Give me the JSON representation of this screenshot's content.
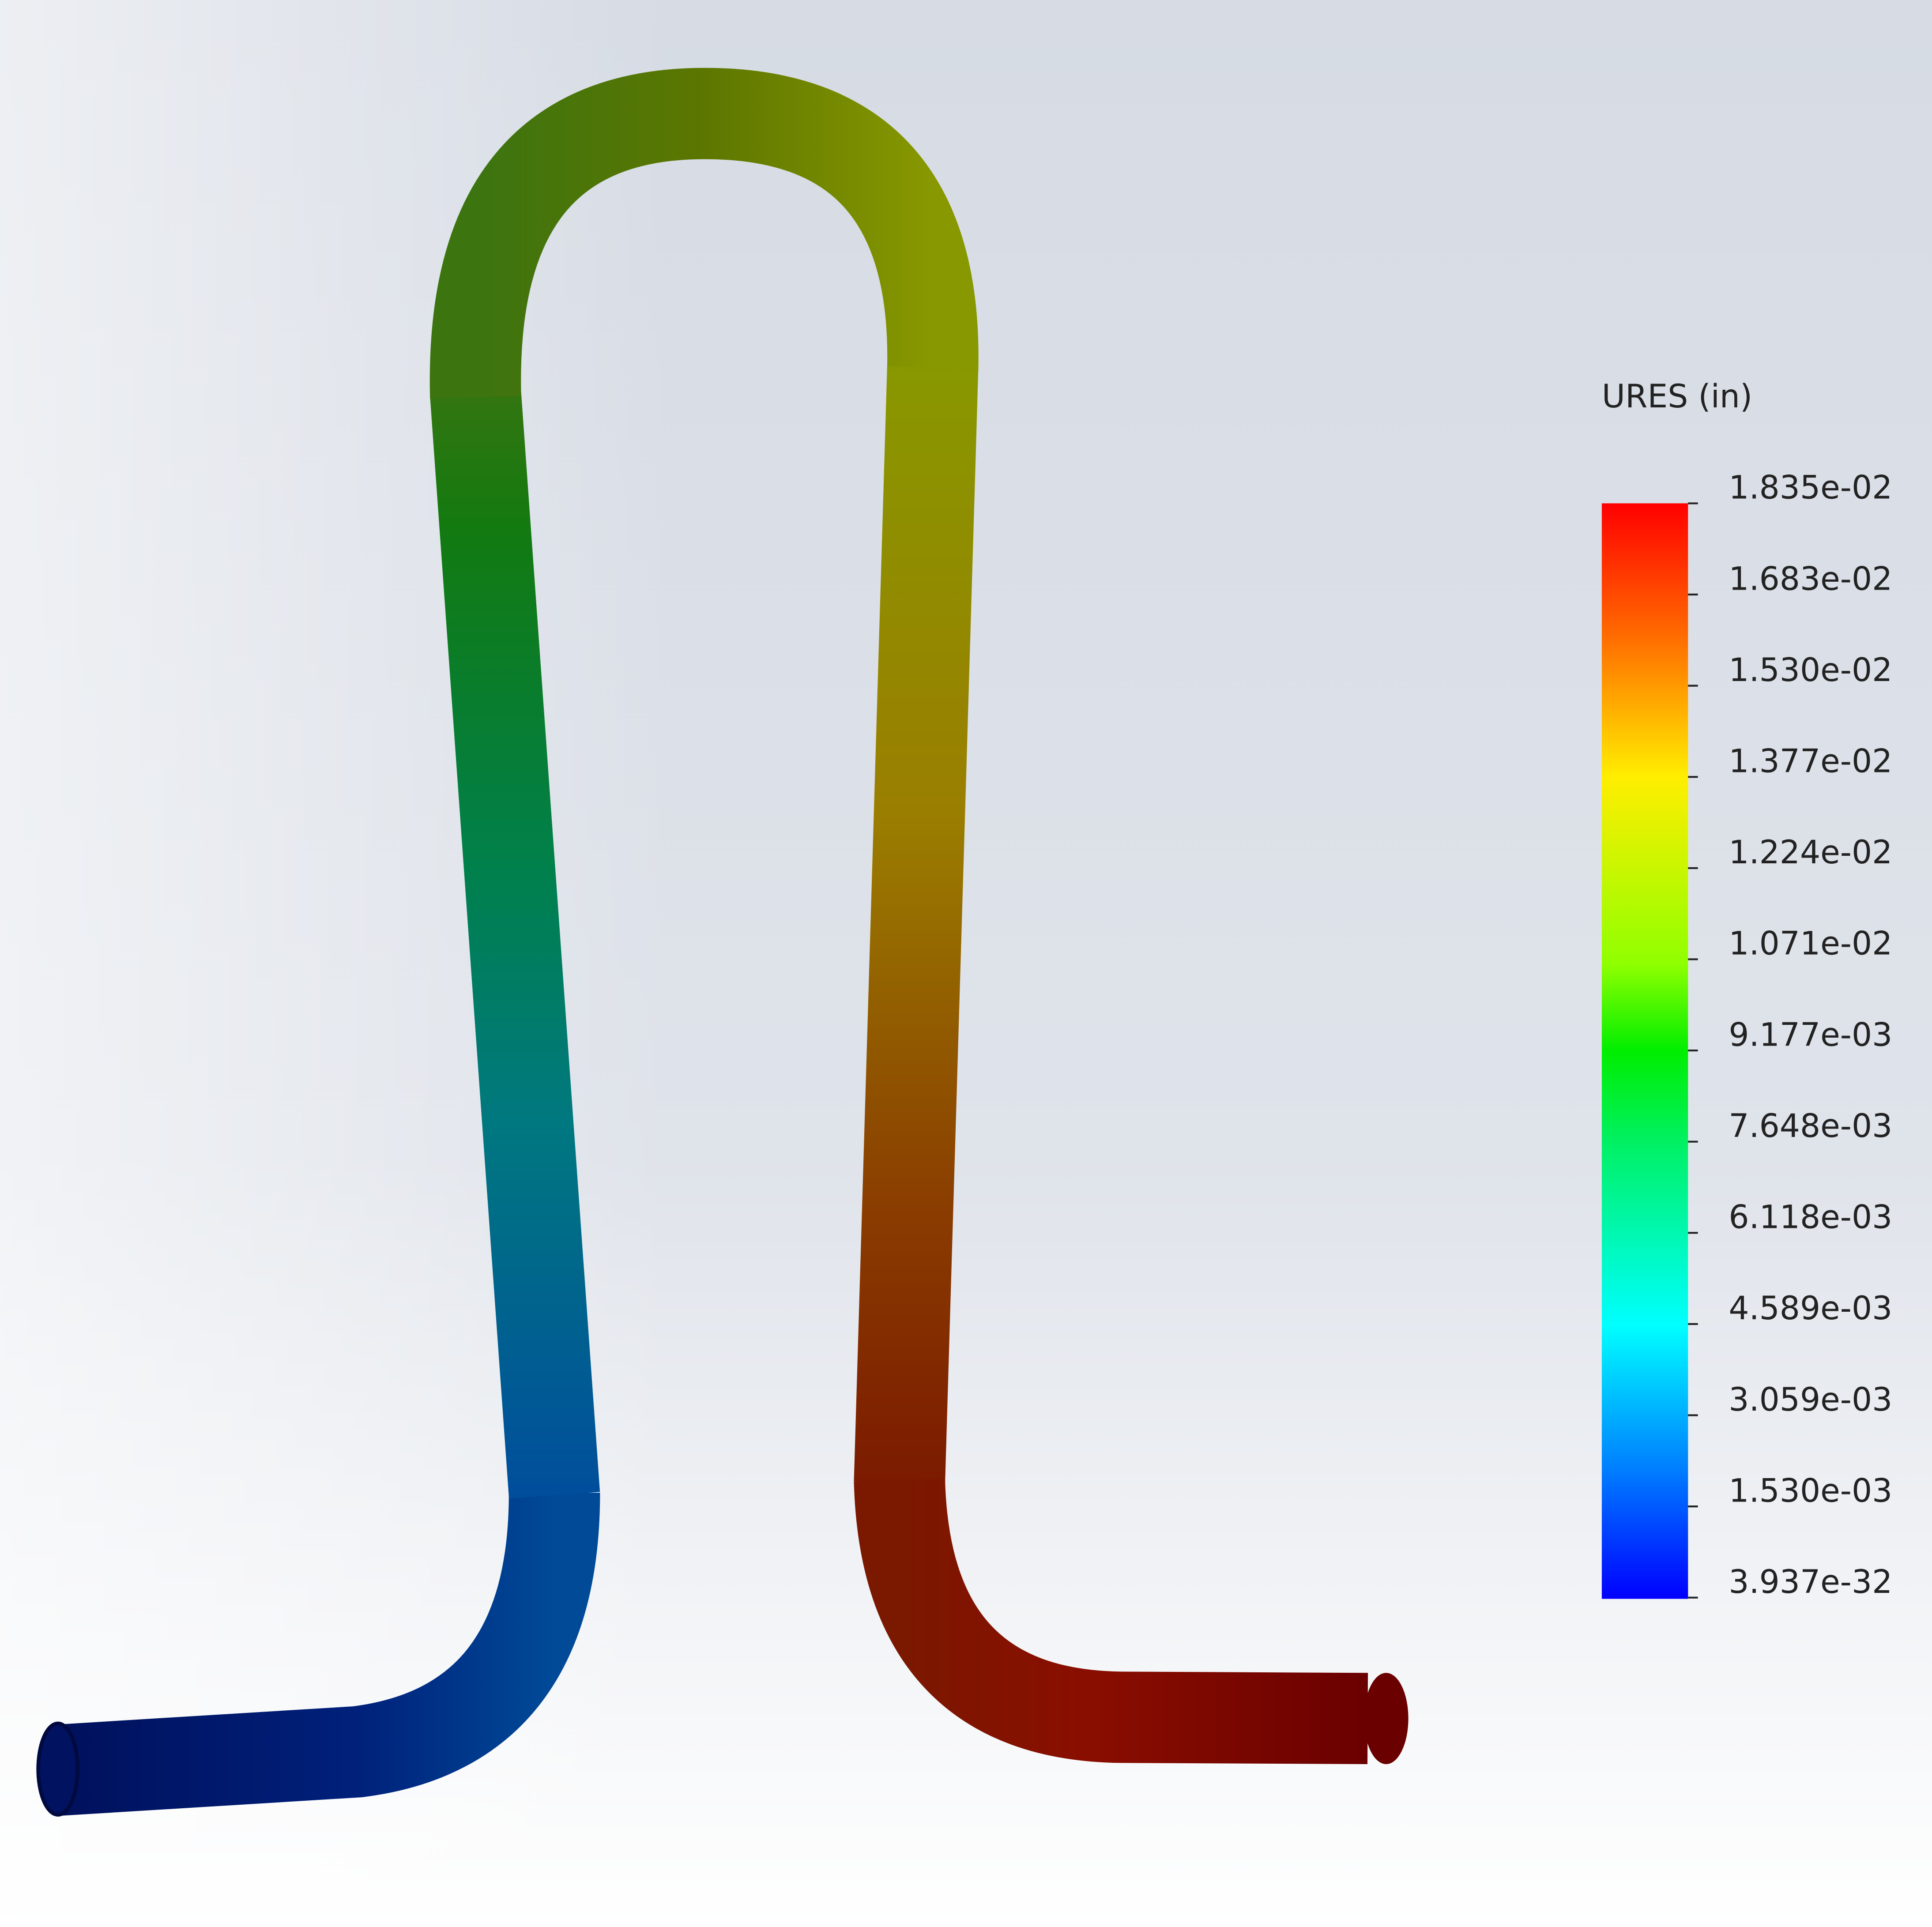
{
  "legend": {
    "title": "URES (in)",
    "labels": [
      "1.835e-02",
      "1.683e-02",
      "1.530e-02",
      "1.377e-02",
      "1.224e-02",
      "1.071e-02",
      "9.177e-03",
      "7.648e-03",
      "6.118e-03",
      "4.589e-03",
      "3.059e-03",
      "1.530e-03",
      "3.937e-32"
    ]
  }
}
